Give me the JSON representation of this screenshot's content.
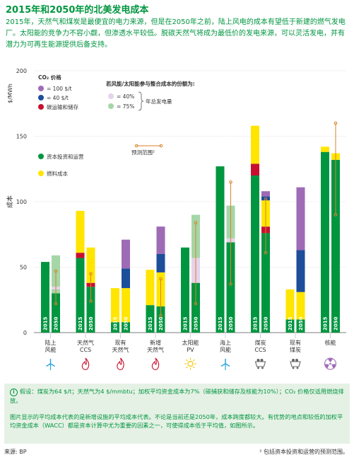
{
  "title": "2015年和2050年的北美发电成本",
  "intro": "2015年，天然气和煤炭是最便宜的电力来源，但是在2050年之前，陆上风电的成本有望低于新建的燃气发电厂。太阳能的竞争力不容小觑，但渗透水平较低。脱碳天然气将成为最低价的发电来源，可以灵活发电，并有潜力为可再生能源提供后备支持。",
  "colors": {
    "capex": "#009640",
    "capex_light": "#a5d6a7",
    "fuel": "#ffe500",
    "co2_100": "#9e6bb5",
    "co2_100_light": "#e5d3ec",
    "co2_40": "#1c4e9a",
    "transport": "#c8102e",
    "range": "#d9822b"
  },
  "chart_data": {
    "type": "bar",
    "ylabel": "成本",
    "yunit": "$/MWh",
    "ylim": [
      0,
      200
    ],
    "yticks": [
      0,
      50,
      100,
      150,
      200
    ],
    "year_labels": [
      "2015",
      "2050"
    ],
    "legend_title_co2": "CO₂ 价格",
    "legend_co2_100": "= 100 $/t",
    "legend_co2_40": "= 40 $/t",
    "legend_transport": "碳运输和储存",
    "legend_capex": "资本投资和运营",
    "legend_fuel": "燃料成本",
    "legend_range": "预测范围²",
    "legend_title_share": "若风能/太阳能参与整合成本的份额为:",
    "legend_share_40": "= 40%",
    "legend_share_75": "= 75%",
    "legend_share_note": "年总发电量",
    "groups": [
      {
        "label": "陆上\n风能",
        "icon": "wind-turbine-icon",
        "bars": [
          {
            "year": "2015",
            "segments": [
              {
                "k": "capex",
                "v": 54
              }
            ]
          },
          {
            "year": "2050",
            "segments": [
              {
                "k": "capex",
                "v": 30
              },
              {
                "k": "capex_light",
                "v": 3
              },
              {
                "k": "co2_100_light",
                "v": 2
              },
              {
                "k": "capex_light",
                "v": 24
              }
            ],
            "range": [
              22,
              47
            ]
          }
        ]
      },
      {
        "label": "天然气\nCCS",
        "icon": "gas-flame-icon",
        "bars": [
          {
            "year": "2015",
            "segments": [
              {
                "k": "capex",
                "v": 57
              },
              {
                "k": "transport",
                "v": 4
              },
              {
                "k": "fuel",
                "v": 32
              }
            ]
          },
          {
            "year": "2050",
            "segments": [
              {
                "k": "capex",
                "v": 35
              },
              {
                "k": "transport",
                "v": 3
              },
              {
                "k": "fuel",
                "v": 27
              }
            ],
            "range": [
              24,
              45
            ]
          }
        ]
      },
      {
        "label": "现有\n天然气",
        "icon": "gas-flame-icon",
        "bars": [
          {
            "year": "2015",
            "segments": [
              {
                "k": "capex",
                "v": 8
              },
              {
                "k": "fuel",
                "v": 26
              }
            ]
          },
          {
            "year": "2050",
            "segments": [
              {
                "k": "capex",
                "v": 8
              },
              {
                "k": "fuel",
                "v": 26
              },
              {
                "k": "co2_40",
                "v": 15
              },
              {
                "k": "co2_100",
                "v": 22
              }
            ]
          }
        ]
      },
      {
        "label": "新增\n天然气",
        "icon": "gas-flame-icon",
        "bars": [
          {
            "year": "2015",
            "segments": [
              {
                "k": "capex",
                "v": 21
              },
              {
                "k": "fuel",
                "v": 27
              }
            ]
          },
          {
            "year": "2050",
            "segments": [
              {
                "k": "capex",
                "v": 20
              },
              {
                "k": "fuel",
                "v": 26
              },
              {
                "k": "co2_40",
                "v": 14
              },
              {
                "k": "co2_100",
                "v": 21
              }
            ],
            "range": [
              13,
              41
            ]
          }
        ]
      },
      {
        "label": "太阳能\nPV",
        "icon": "sun-icon",
        "bars": [
          {
            "year": "2015",
            "segments": [
              {
                "k": "capex",
                "v": 65
              }
            ]
          },
          {
            "year": "2050",
            "segments": [
              {
                "k": "capex",
                "v": 38
              },
              {
                "k": "co2_100_light",
                "v": 19
              },
              {
                "k": "capex_light",
                "v": 33
              }
            ],
            "range": [
              22,
              84
            ]
          }
        ]
      },
      {
        "label": "海上\n风能",
        "icon": "wind-turbine-icon",
        "bars": [
          {
            "year": "2015",
            "segments": [
              {
                "k": "capex",
                "v": 127
              }
            ]
          },
          {
            "year": "2050",
            "segments": [
              {
                "k": "capex",
                "v": 69
              },
              {
                "k": "co2_100_light",
                "v": 3
              },
              {
                "k": "capex_light",
                "v": 25
              }
            ],
            "range": [
              37,
              115
            ]
          }
        ]
      },
      {
        "label": "煤炭\nCCS",
        "icon": "coal-cart-icon",
        "bars": [
          {
            "year": "2015",
            "segments": [
              {
                "k": "capex",
                "v": 120
              },
              {
                "k": "transport",
                "v": 9
              },
              {
                "k": "fuel",
                "v": 29
              }
            ]
          },
          {
            "year": "2050",
            "segments": [
              {
                "k": "capex",
                "v": 76
              },
              {
                "k": "transport",
                "v": 5
              },
              {
                "k": "fuel",
                "v": 20
              },
              {
                "k": "co2_40",
                "v": 3
              },
              {
                "k": "co2_100",
                "v": 4
              }
            ],
            "range": [
              61,
              102
            ]
          }
        ]
      },
      {
        "label": "现有\n煤炭",
        "icon": "coal-cart-icon",
        "bars": [
          {
            "year": "2015",
            "segments": [
              {
                "k": "capex",
                "v": 10
              },
              {
                "k": "fuel",
                "v": 23
              }
            ]
          },
          {
            "year": "2050",
            "segments": [
              {
                "k": "capex",
                "v": 10
              },
              {
                "k": "fuel",
                "v": 21
              },
              {
                "k": "co2_40",
                "v": 32
              },
              {
                "k": "co2_100",
                "v": 48
              }
            ]
          }
        ]
      },
      {
        "label": "核能",
        "icon": "radiation-icon",
        "bars": [
          {
            "year": "2015",
            "segments": [
              {
                "k": "capex",
                "v": 138
              },
              {
                "k": "fuel",
                "v": 4
              }
            ]
          },
          {
            "year": "2050",
            "segments": [
              {
                "k": "capex",
                "v": 132
              },
              {
                "k": "fuel",
                "v": 5
              }
            ],
            "range": [
              90,
              160
            ]
          }
        ]
      }
    ]
  },
  "note1": "假设：煤炭为64 $/t；天然气为4 $/mmbtu；加权平均资金成本为7%（碳捕获和储存及核能为10%）；CO₂ 价格仅适用燃烧排放。",
  "note2": "图片显示的平均成本代表的是新增设施的平均成本代表。不论是当前还是2050年，成本跨度都较大。有优势的地点和较低的加权平均资金成本（WACC）都是资本计算中尤为重要的因素之一，可使得成本低于平均值，如图所示。",
  "source": "来源: BP",
  "footnote": "² 包括资本投资和运营的预测范围。"
}
